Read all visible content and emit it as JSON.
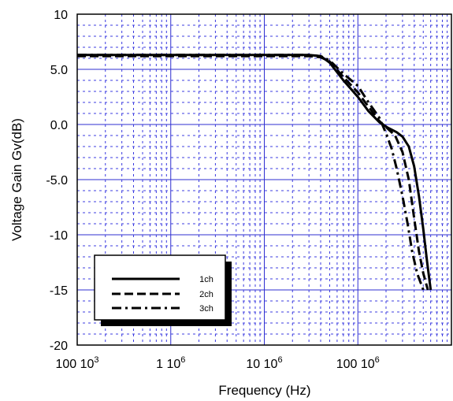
{
  "chart_data": {
    "type": "line",
    "title": "",
    "xlabel": "Frequency (Hz)",
    "ylabel": "Voltage Gain  Gv(dB)",
    "x_scale": "log",
    "xlim": [
      100000,
      1000000000
    ],
    "ylim": [
      -20,
      10
    ],
    "grid": true,
    "legend_position": "bottom-left",
    "colors": {
      "major_grid": "#2f2fd0",
      "minor_grid": "#3c3ce0",
      "series": "#000000",
      "frame": "#000000"
    },
    "x_ticks": [
      {
        "value": 100000,
        "label": "100 10",
        "sup": "3"
      },
      {
        "value": 1000000,
        "label": "1 10",
        "sup": "6"
      },
      {
        "value": 10000000,
        "label": "10 10",
        "sup": "6"
      },
      {
        "value": 100000000,
        "label": "100 10",
        "sup": "6"
      }
    ],
    "y_ticks": [
      {
        "value": 10,
        "label": "10"
      },
      {
        "value": 5,
        "label": "5.0"
      },
      {
        "value": 0,
        "label": "0.0"
      },
      {
        "value": -5,
        "label": "-5.0"
      },
      {
        "value": -10,
        "label": "-10"
      },
      {
        "value": -15,
        "label": "-15"
      },
      {
        "value": -20,
        "label": "-20"
      }
    ],
    "series": [
      {
        "name": "1ch",
        "dash": "solid",
        "points": [
          [
            100000,
            6.3
          ],
          [
            1000000,
            6.3
          ],
          [
            10000000,
            6.3
          ],
          [
            30000000,
            6.3
          ],
          [
            40000000,
            6.2
          ],
          [
            50000000,
            5.6
          ],
          [
            70000000,
            4.0
          ],
          [
            100000000,
            2.5
          ],
          [
            130000000,
            1.2
          ],
          [
            170000000,
            0.2
          ],
          [
            210000000,
            -0.3
          ],
          [
            260000000,
            -0.7
          ],
          [
            300000000,
            -1.1
          ],
          [
            350000000,
            -2.0
          ],
          [
            400000000,
            -3.8
          ],
          [
            450000000,
            -6.5
          ],
          [
            500000000,
            -9.5
          ],
          [
            550000000,
            -12.5
          ],
          [
            600000000,
            -15.0
          ]
        ]
      },
      {
        "name": "2ch",
        "dash": "dashed",
        "points": [
          [
            100000,
            6.2
          ],
          [
            1000000,
            6.2
          ],
          [
            10000000,
            6.2
          ],
          [
            30000000,
            6.2
          ],
          [
            40000000,
            6.1
          ],
          [
            50000000,
            5.7
          ],
          [
            70000000,
            4.3
          ],
          [
            100000000,
            2.9
          ],
          [
            130000000,
            1.6
          ],
          [
            170000000,
            0.3
          ],
          [
            210000000,
            -0.4
          ],
          [
            250000000,
            -1.0
          ],
          [
            300000000,
            -2.5
          ],
          [
            350000000,
            -5.0
          ],
          [
            400000000,
            -8.5
          ],
          [
            450000000,
            -11.5
          ],
          [
            500000000,
            -13.5
          ],
          [
            560000000,
            -15.0
          ]
        ]
      },
      {
        "name": "3ch",
        "dash": "dashdot",
        "points": [
          [
            100000,
            6.3
          ],
          [
            1000000,
            6.3
          ],
          [
            10000000,
            6.3
          ],
          [
            30000000,
            6.3
          ],
          [
            40000000,
            6.2
          ],
          [
            50000000,
            5.8
          ],
          [
            70000000,
            4.6
          ],
          [
            100000000,
            3.5
          ],
          [
            130000000,
            2.0
          ],
          [
            170000000,
            0.6
          ],
          [
            200000000,
            -0.8
          ],
          [
            230000000,
            -2.2
          ],
          [
            260000000,
            -4.0
          ],
          [
            300000000,
            -6.5
          ],
          [
            340000000,
            -9.0
          ],
          [
            380000000,
            -11.5
          ],
          [
            430000000,
            -13.5
          ],
          [
            500000000,
            -15.0
          ]
        ]
      }
    ]
  }
}
